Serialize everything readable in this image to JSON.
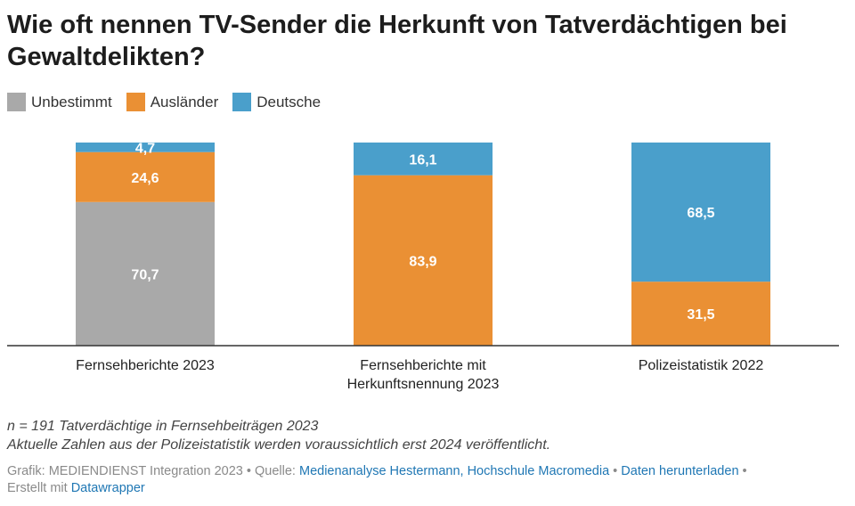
{
  "title": "Wie oft nennen TV-Sender die Herkunft von Tatverdächtigen bei Gewaltdelikten?",
  "legend": [
    {
      "label": "Unbestimmt",
      "color": "#a9a9a9"
    },
    {
      "label": "Ausländer",
      "color": "#ea9034"
    },
    {
      "label": "Deutsche",
      "color": "#4a9fcb"
    }
  ],
  "chart_data": {
    "type": "bar",
    "stacked": true,
    "percent": true,
    "categories": [
      [
        "Fernsehberichte 2023"
      ],
      [
        "Fernsehberichte mit",
        "Herkunftsnennung 2023"
      ],
      [
        "Polizeistatistik 2022"
      ]
    ],
    "series": [
      {
        "name": "Unbestimmt",
        "color": "#a9a9a9",
        "values": [
          70.7,
          null,
          null
        ],
        "labels": [
          "70,7",
          "",
          ""
        ]
      },
      {
        "name": "Ausländer",
        "color": "#ea9034",
        "values": [
          24.6,
          83.9,
          31.5
        ],
        "labels": [
          "24,6",
          "83,9",
          "31,5"
        ]
      },
      {
        "name": "Deutsche",
        "color": "#4a9fcb",
        "values": [
          4.7,
          16.1,
          68.5
        ],
        "labels": [
          "4,7",
          "16,1",
          "68,5"
        ]
      }
    ],
    "ylim": [
      0,
      100
    ],
    "xlabel": "",
    "ylabel": "",
    "grid": false,
    "legend_position": "top-left"
  },
  "notes": [
    "n = 191 Tatverdächtige in Fernsehbeiträgen 2023",
    "Aktuelle Zahlen aus der Polizeistatistik werden voraussichtlich erst 2024 veröffentlicht."
  ],
  "footer": {
    "prefix": "Grafik: MEDIENDIENST Integration 2023 • Quelle: ",
    "source_link": "Medienanalyse Hestermann, Hochschule Macromedia",
    "separator1": " • ",
    "download_link": "Daten herunterladen",
    "separator2": " •",
    "created_with": "Erstellt mit ",
    "datawrapper_link": "Datawrapper"
  }
}
